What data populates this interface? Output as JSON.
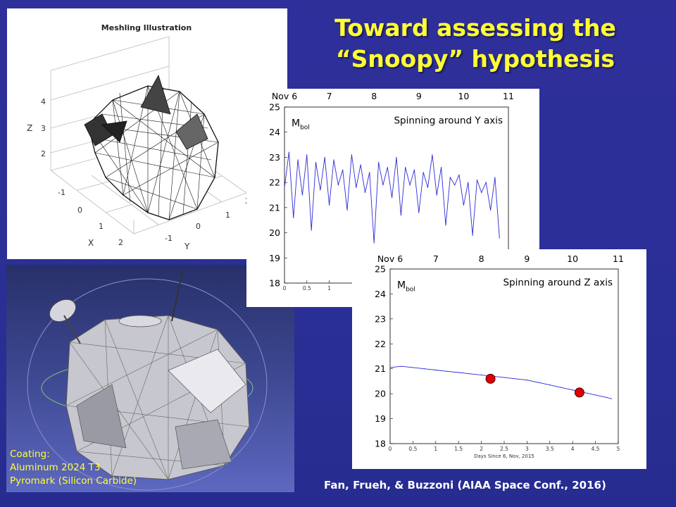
{
  "slide": {
    "title_line1": "Toward assessing the",
    "title_line2": "“Snoopy” hypothesis",
    "citation": "Fan, Frueh, & Buzzoni (AIAA Space Conf., 2016)"
  },
  "mesh_figure": {
    "title": "Meshling Illustration",
    "z_label": "Z",
    "x_label": "X",
    "y_label": "Y",
    "z_ticks": [
      "4",
      "3",
      "2"
    ],
    "x_ticks": [
      "-1",
      "0",
      "1",
      "2"
    ],
    "y_ticks": [
      "-1",
      "0",
      "1",
      "2"
    ]
  },
  "render_figure": {
    "coating_title": "Coating:",
    "coating_items": [
      "Aluminum 2024 T3",
      "Pyromark (Silicon Carbide)"
    ]
  },
  "colors": {
    "title_yellow": "#ffff33",
    "background_blue": "#2c309a",
    "curve_blue": "#2b2bd8",
    "marker_red": "#dd0000"
  },
  "chart_data": [
    {
      "type": "line",
      "annotation": "Spinning around Y axis",
      "ylabel_main": "M",
      "ylabel_sub": "bol",
      "top_axis_ticks": [
        "Nov 6",
        "7",
        "8",
        "9",
        "10",
        "11"
      ],
      "bottom_axis_ticks": [
        "0",
        "0.5",
        "1"
      ],
      "yticks": [
        "25",
        "24",
        "23",
        "22",
        "21",
        "20",
        "19",
        "18"
      ],
      "ylim": [
        18,
        25
      ],
      "xlim": [
        0,
        5
      ],
      "y_inverted": true,
      "series": [
        {
          "x": [
            0,
            0.1,
            0.2,
            0.3,
            0.4,
            0.5,
            0.6,
            0.7,
            0.8,
            0.9,
            1.0,
            1.1,
            1.2,
            1.3,
            1.4,
            1.5,
            1.6,
            1.7,
            1.8,
            1.9,
            2.0,
            2.1,
            2.2,
            2.3,
            2.4,
            2.5,
            2.6,
            2.7,
            2.8,
            2.9,
            3.0,
            3.1,
            3.2,
            3.3,
            3.4,
            3.5,
            3.6,
            3.7,
            3.8,
            3.9,
            4.0,
            4.1,
            4.2,
            4.3,
            4.4,
            4.5,
            4.6,
            4.7,
            4.8
          ],
          "y": [
            21.8,
            23.2,
            20.6,
            22.9,
            21.5,
            23.1,
            20.1,
            22.8,
            21.7,
            23.0,
            21.1,
            22.9,
            21.9,
            22.5,
            20.9,
            23.1,
            21.8,
            22.7,
            21.6,
            22.4,
            19.6,
            22.8,
            21.9,
            22.6,
            21.4,
            23.0,
            20.7,
            22.6,
            21.9,
            22.5,
            20.8,
            22.4,
            21.8,
            23.1,
            21.5,
            22.6,
            20.3,
            22.2,
            21.9,
            22.3,
            21.1,
            22.0,
            19.9,
            22.1,
            21.6,
            22.0,
            20.9,
            22.2,
            19.8
          ]
        }
      ]
    },
    {
      "type": "line",
      "annotation": "Spinning around Z axis",
      "ylabel_main": "M",
      "ylabel_sub": "bol",
      "xlabel": "Days Since 6, Nov, 2015",
      "top_axis_ticks": [
        "Nov 6",
        "7",
        "8",
        "9",
        "10",
        "11"
      ],
      "xticks": [
        "0",
        "0.5",
        "1",
        "1.5",
        "2",
        "2.5",
        "3",
        "3.5",
        "4",
        "4.5",
        "5"
      ],
      "yticks": [
        "25",
        "24",
        "23",
        "22",
        "21",
        "20",
        "19",
        "18"
      ],
      "ylim": [
        18,
        25
      ],
      "xlim": [
        0,
        5
      ],
      "y_inverted": true,
      "series": [
        {
          "x": [
            0,
            0.25,
            0.5,
            0.75,
            1.0,
            1.25,
            1.5,
            1.75,
            2.0,
            2.25,
            2.5,
            2.75,
            3.0,
            3.25,
            3.5,
            3.75,
            4.0,
            4.25,
            4.5,
            4.75,
            4.85
          ],
          "y": [
            21.05,
            21.1,
            21.05,
            21.0,
            20.95,
            20.9,
            20.85,
            20.8,
            20.75,
            20.7,
            20.65,
            20.6,
            20.55,
            20.45,
            20.35,
            20.25,
            20.15,
            20.05,
            19.95,
            19.85,
            19.8
          ]
        }
      ],
      "markers": [
        {
          "x": 2.2,
          "y": 20.6
        },
        {
          "x": 4.15,
          "y": 20.05
        }
      ]
    }
  ]
}
